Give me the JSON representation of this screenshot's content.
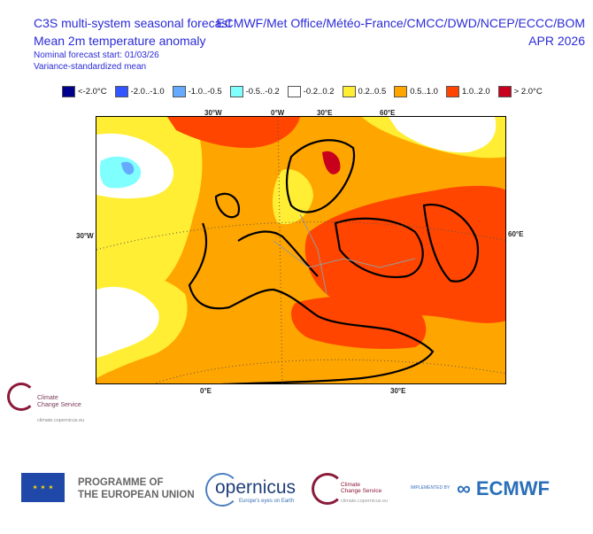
{
  "header": {
    "title_line1": "C3S multi-system seasonal forecast",
    "title_line2": "Mean 2m temperature anomaly",
    "forecast_start": "Nominal forecast start: 01/03/26",
    "method": "Variance-standardized mean",
    "systems": "ECMWF/Met Office/Météo-France/CMCC/DWD/NCEP/ECCC/BOM",
    "valid_month": "APR 2026"
  },
  "legend": [
    {
      "label": "<-2.0°C",
      "color": "#00008B"
    },
    {
      "label": "-2.0..-1.0",
      "color": "#3355FF"
    },
    {
      "label": "-1.0..-0.5",
      "color": "#66AAFF"
    },
    {
      "label": "-0.5..-0.2",
      "color": "#80FFFF"
    },
    {
      "label": "-0.2..0.2",
      "color": "#FFFFFF"
    },
    {
      "label": "0.2..0.5",
      "color": "#FFEE33"
    },
    {
      "label": "0.5..1.0",
      "color": "#FFA500"
    },
    {
      "label": "1.0..2.0",
      "color": "#FF4500"
    },
    {
      "label": "> 2.0°C",
      "color": "#C8001E"
    }
  ],
  "map": {
    "top_ticks": [
      "30°W",
      "0°W",
      "30°E",
      "60°E"
    ],
    "left_tick": "30°W",
    "right_tick": "60°E",
    "bottom_ticks": [
      "0°E",
      "30°E"
    ]
  },
  "side_logo": {
    "line1": "Climate",
    "line2": "Change Service",
    "url": "climate.copernicus.eu"
  },
  "footer": {
    "eu_line1": "PROGRAMME OF",
    "eu_line2": "THE EUROPEAN UNION",
    "copernicus": "opernicus",
    "copernicus_c": "C",
    "copernicus_tag": "Europe's eyes on Earth",
    "c3s_line1": "Climate",
    "c3s_line2": "Change Service",
    "c3s_url": "climate.copernicus.eu",
    "implemented_by": "IMPLEMENTED BY",
    "ecmwf": "ECMWF"
  }
}
